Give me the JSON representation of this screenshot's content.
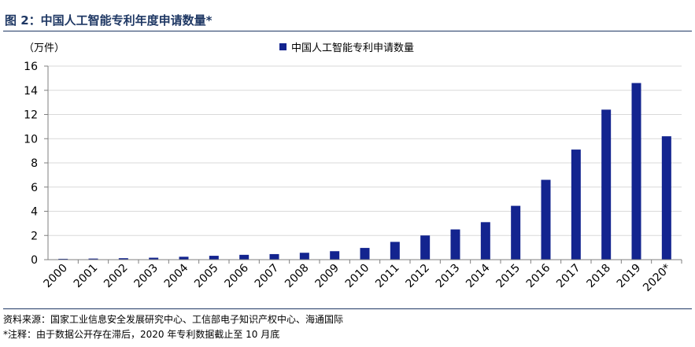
{
  "title": "图 2：中国人工智能专利年度申请数量*",
  "source_note": "资料来源：国家工业信息安全发展研究中心、工信部电子知识产权中心、海通国际",
  "footnote": "*注释：由于数据公开存在滞后，2020 年专利数据截止至 10 月底",
  "colors": {
    "bar": "#13248f",
    "grid": "#d9d9d9",
    "axis": "#7f7f7f",
    "title": "#1f3864"
  },
  "chart_data": {
    "type": "bar",
    "unit_label": "（万件）",
    "categories": [
      "2000",
      "2001",
      "2002",
      "2003",
      "2004",
      "2005",
      "2006",
      "2007",
      "2008",
      "2009",
      "2010",
      "2011",
      "2012",
      "2013",
      "2014",
      "2015",
      "2016",
      "2017",
      "2018",
      "2019",
      "2020*"
    ],
    "series": [
      {
        "name": "中国人工智能专利申请数量",
        "values": [
          0.07,
          0.09,
          0.12,
          0.16,
          0.24,
          0.32,
          0.4,
          0.46,
          0.57,
          0.7,
          0.97,
          1.47,
          2.0,
          2.5,
          3.1,
          4.45,
          6.6,
          9.1,
          12.4,
          14.6,
          10.2
        ]
      }
    ],
    "ylim": [
      0,
      16
    ],
    "yticks": [
      0,
      2,
      4,
      6,
      8,
      10,
      12,
      14,
      16
    ],
    "grid": true,
    "legend": "top-center"
  }
}
